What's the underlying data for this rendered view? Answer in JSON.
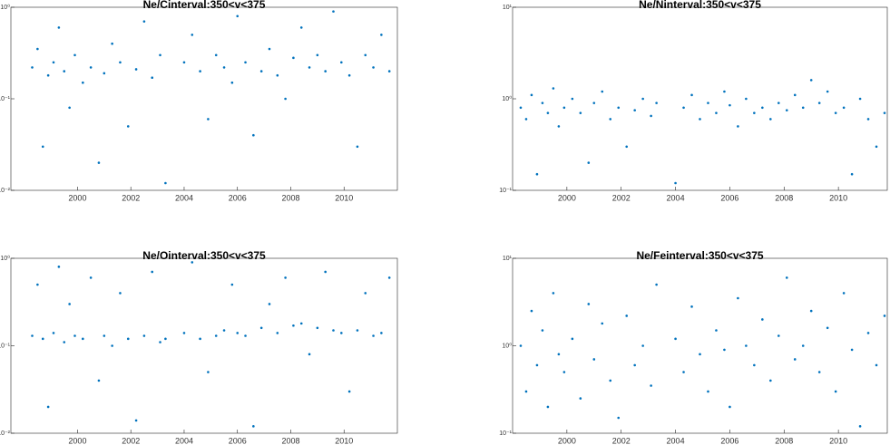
{
  "chart_data": [
    {
      "type": "scatter",
      "title": "Ne/Cinterval:350<v<375",
      "color": "#0072bd",
      "log_y": true,
      "xlim": [
        1997.5,
        2012
      ],
      "ylim": [
        0.01,
        1
      ],
      "xticks": [
        2000,
        2002,
        2004,
        2006,
        2008,
        2010
      ],
      "yticks": [
        {
          "value": 0.01,
          "label": "10⁻²"
        },
        {
          "value": 0.1,
          "label": "10⁻¹"
        },
        {
          "value": 1,
          "label": "10⁰"
        }
      ],
      "x": [
        1998.3,
        1998.5,
        1998.7,
        1998.9,
        1999.1,
        1999.3,
        1999.5,
        1999.7,
        1999.9,
        2000.2,
        2000.5,
        2000.8,
        2001.0,
        2001.3,
        2001.6,
        2001.9,
        2002.2,
        2002.5,
        2002.8,
        2003.1,
        2003.3,
        2004.0,
        2004.3,
        2004.6,
        2004.9,
        2005.2,
        2005.5,
        2005.8,
        2006.0,
        2006.3,
        2006.6,
        2006.9,
        2007.2,
        2007.5,
        2007.8,
        2008.1,
        2008.4,
        2008.7,
        2009.0,
        2009.3,
        2009.6,
        2009.9,
        2010.2,
        2010.5,
        2010.8,
        2011.1,
        2011.4,
        2011.7
      ],
      "values": [
        0.22,
        0.35,
        0.03,
        0.18,
        0.25,
        0.6,
        0.2,
        0.08,
        0.3,
        0.15,
        0.22,
        0.02,
        0.19,
        0.4,
        0.25,
        0.05,
        0.21,
        0.7,
        0.17,
        0.3,
        0.012,
        0.25,
        0.5,
        0.2,
        0.06,
        0.3,
        0.22,
        0.15,
        0.8,
        0.25,
        0.04,
        0.2,
        0.35,
        0.18,
        0.1,
        0.28,
        0.6,
        0.22,
        0.3,
        0.2,
        0.9,
        0.25,
        0.18,
        0.03,
        0.3,
        0.22,
        0.5,
        0.2
      ]
    },
    {
      "type": "scatter",
      "title": "Ne/Ninterval:350<v<375",
      "color": "#0072bd",
      "log_y": true,
      "xlim": [
        1998,
        2011.8
      ],
      "ylim": [
        0.1,
        10
      ],
      "xticks": [
        2000,
        2002,
        2004,
        2006,
        2008,
        2010
      ],
      "yticks": [
        {
          "value": 0.1,
          "label": "10⁻¹"
        },
        {
          "value": 1,
          "label": "10⁰"
        },
        {
          "value": 10,
          "label": "10¹"
        }
      ],
      "x": [
        1998.3,
        1998.5,
        1998.7,
        1998.9,
        1999.1,
        1999.3,
        1999.5,
        1999.7,
        1999.9,
        2000.2,
        2000.5,
        2000.8,
        2001.0,
        2001.3,
        2001.6,
        2001.9,
        2002.2,
        2002.5,
        2002.8,
        2003.1,
        2003.3,
        2004.0,
        2004.3,
        2004.6,
        2004.9,
        2005.2,
        2005.5,
        2005.8,
        2006.0,
        2006.3,
        2006.6,
        2006.9,
        2007.2,
        2007.5,
        2007.8,
        2008.1,
        2008.4,
        2008.7,
        2009.0,
        2009.3,
        2009.6,
        2009.9,
        2010.2,
        2010.5,
        2010.8,
        2011.1,
        2011.4,
        2011.7
      ],
      "values": [
        0.8,
        0.6,
        1.1,
        0.15,
        0.9,
        0.7,
        1.3,
        0.5,
        0.8,
        1.0,
        0.7,
        0.2,
        0.9,
        1.2,
        0.6,
        0.8,
        0.3,
        0.75,
        1.0,
        0.65,
        0.9,
        0.12,
        0.8,
        1.1,
        0.6,
        0.9,
        0.7,
        1.2,
        0.85,
        0.5,
        1.0,
        0.7,
        0.8,
        0.6,
        0.9,
        0.75,
        1.1,
        0.8,
        1.6,
        0.9,
        1.2,
        0.7,
        0.8,
        0.15,
        1.0,
        0.6,
        0.3,
        0.7
      ]
    },
    {
      "type": "scatter",
      "title": "Ne/Ointerval:350<v<375",
      "color": "#0072bd",
      "log_y": true,
      "xlim": [
        1997.5,
        2012
      ],
      "ylim": [
        0.01,
        1
      ],
      "xticks": [
        2000,
        2002,
        2004,
        2006,
        2008,
        2010
      ],
      "yticks": [
        {
          "value": 0.01,
          "label": "10⁻²"
        },
        {
          "value": 0.1,
          "label": "10⁻¹"
        },
        {
          "value": 1,
          "label": "10⁰"
        }
      ],
      "x": [
        1998.3,
        1998.5,
        1998.7,
        1998.9,
        1999.1,
        1999.3,
        1999.5,
        1999.7,
        1999.9,
        2000.2,
        2000.5,
        2000.8,
        2001.0,
        2001.3,
        2001.6,
        2001.9,
        2002.2,
        2002.5,
        2002.8,
        2003.1,
        2003.3,
        2004.0,
        2004.3,
        2004.6,
        2004.9,
        2005.2,
        2005.5,
        2005.8,
        2006.0,
        2006.3,
        2006.6,
        2006.9,
        2007.2,
        2007.5,
        2007.8,
        2008.1,
        2008.4,
        2008.7,
        2009.0,
        2009.3,
        2009.6,
        2009.9,
        2010.2,
        2010.5,
        2010.8,
        2011.1,
        2011.4,
        2011.7
      ],
      "values": [
        0.13,
        0.5,
        0.12,
        0.02,
        0.14,
        0.8,
        0.11,
        0.3,
        0.13,
        0.12,
        0.6,
        0.04,
        0.13,
        0.1,
        0.4,
        0.12,
        0.014,
        0.13,
        0.7,
        0.11,
        0.12,
        0.14,
        0.9,
        0.12,
        0.05,
        0.13,
        0.15,
        0.5,
        0.14,
        0.13,
        0.012,
        0.16,
        0.3,
        0.14,
        0.6,
        0.17,
        0.18,
        0.08,
        0.16,
        0.7,
        0.15,
        0.14,
        0.03,
        0.15,
        0.4,
        0.13,
        0.14,
        0.6
      ]
    },
    {
      "type": "scatter",
      "title": "Ne/Feinterval:350<v<375",
      "color": "#0072bd",
      "log_y": true,
      "xlim": [
        1998,
        2011.8
      ],
      "ylim": [
        0.1,
        10
      ],
      "xticks": [
        2000,
        2002,
        2004,
        2006,
        2008,
        2010
      ],
      "yticks": [
        {
          "value": 0.1,
          "label": "10⁻¹"
        },
        {
          "value": 1,
          "label": "10⁰"
        },
        {
          "value": 10,
          "label": "10¹"
        }
      ],
      "x": [
        1998.3,
        1998.5,
        1998.7,
        1998.9,
        1999.1,
        1999.3,
        1999.5,
        1999.7,
        1999.9,
        2000.2,
        2000.5,
        2000.8,
        2001.0,
        2001.3,
        2001.6,
        2001.9,
        2002.2,
        2002.5,
        2002.8,
        2003.1,
        2003.3,
        2004.0,
        2004.3,
        2004.6,
        2004.9,
        2005.2,
        2005.5,
        2005.8,
        2006.0,
        2006.3,
        2006.6,
        2006.9,
        2007.2,
        2007.5,
        2007.8,
        2008.1,
        2008.4,
        2008.7,
        2009.0,
        2009.3,
        2009.6,
        2009.9,
        2010.2,
        2010.5,
        2010.8,
        2011.1,
        2011.4,
        2011.7
      ],
      "values": [
        1.0,
        0.3,
        2.5,
        0.6,
        1.5,
        0.2,
        4.0,
        0.8,
        0.5,
        1.2,
        0.25,
        3.0,
        0.7,
        1.8,
        0.4,
        0.15,
        2.2,
        0.6,
        1.0,
        0.35,
        5.0,
        1.2,
        0.5,
        2.8,
        0.8,
        0.3,
        1.5,
        0.9,
        0.2,
        3.5,
        1.0,
        0.6,
        2.0,
        0.4,
        1.3,
        6.0,
        0.7,
        1.0,
        2.5,
        0.5,
        1.6,
        0.3,
        4.0,
        0.9,
        0.12,
        1.4,
        0.6,
        2.2
      ]
    }
  ]
}
